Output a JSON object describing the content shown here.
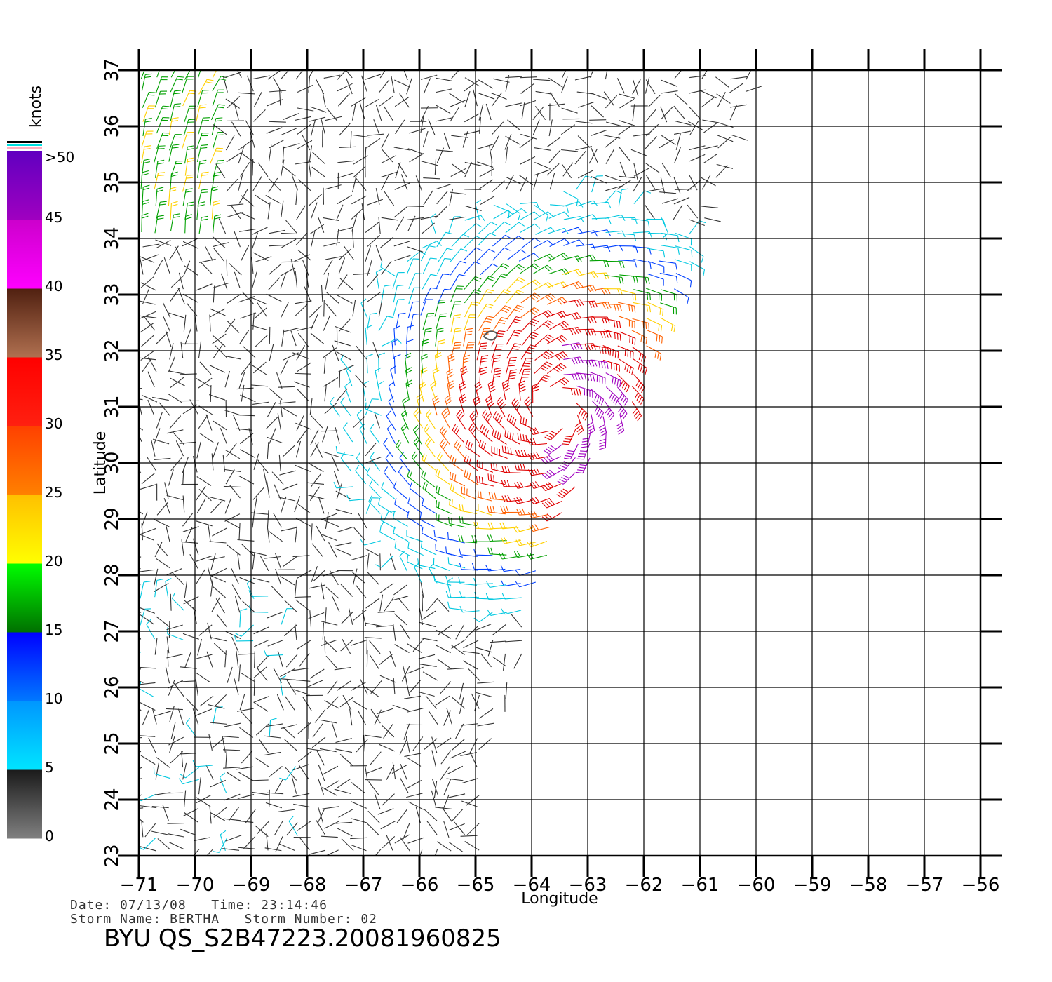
{
  "footer": {
    "date_label": "Date:",
    "date_value": "07/13/08",
    "time_label": "Time:",
    "time_value": "23:14:46",
    "storm_name_label": "Storm Name:",
    "storm_name_value": "BERTHA",
    "storm_number_label": "Storm Number:",
    "storm_number_value": "02",
    "product_id": "BYU QS_S2B47223.20081960825"
  },
  "chart_data": {
    "type": "wind-barbs",
    "xlabel": "Longitude",
    "ylabel": "Latitude",
    "xlim": [
      -71,
      -56
    ],
    "ylim": [
      23,
      37
    ],
    "x_ticks": [
      -71,
      -70,
      -69,
      -68,
      -67,
      -66,
      -65,
      -64,
      -63,
      -62,
      -61,
      -60,
      -59,
      -58,
      -57,
      -56
    ],
    "y_ticks": [
      23,
      24,
      25,
      26,
      27,
      28,
      29,
      30,
      31,
      32,
      33,
      34,
      35,
      36,
      37
    ],
    "grid": true,
    "storm_center": {
      "lon": -63.6,
      "lat": 30.9
    },
    "swath_east_edge": [
      [
        -60.0,
        37
      ],
      [
        -61.0,
        34
      ],
      [
        -61.5,
        33
      ],
      [
        -62.0,
        32
      ],
      [
        -62.2,
        31
      ],
      [
        -63.0,
        30
      ],
      [
        -63.6,
        28.5
      ],
      [
        -64.0,
        27.5
      ],
      [
        -64.3,
        26
      ],
      [
        -64.7,
        25
      ],
      [
        -64.9,
        24.0
      ]
    ],
    "colorbar": {
      "units": "knots",
      "tick_labels": [
        "0",
        "5",
        "10",
        "15",
        "20",
        "25",
        "30",
        "35",
        "40",
        "45",
        ">50"
      ],
      "bins": [
        {
          "min": 0,
          "max": 5,
          "color_low": "#808080",
          "color_high": "#1a1a1a"
        },
        {
          "min": 5,
          "max": 10,
          "color_low": "#00e5ff",
          "color_high": "#0096ff"
        },
        {
          "min": 10,
          "max": 15,
          "color_low": "#0078ff",
          "color_high": "#0000ff"
        },
        {
          "min": 15,
          "max": 20,
          "color_low": "#007000",
          "color_high": "#00ff00"
        },
        {
          "min": 20,
          "max": 25,
          "color_low": "#ffff00",
          "color_high": "#ffc000"
        },
        {
          "min": 25,
          "max": 30,
          "color_low": "#ff8000",
          "color_high": "#ff4000"
        },
        {
          "min": 30,
          "max": 35,
          "color_low": "#ff2010",
          "color_high": "#ff0000"
        },
        {
          "min": 35,
          "max": 40,
          "color_low": "#b07050",
          "color_high": "#502010"
        },
        {
          "min": 40,
          "max": 45,
          "color_low": "#ff00ff",
          "color_high": "#cc00cc"
        },
        {
          "min": 45,
          "max": 50,
          "color_low": "#a000c0",
          "color_high": "#6000c0"
        }
      ]
    },
    "wind_speed_bands_knots": [
      {
        "label": "0-5",
        "color": "#333333"
      },
      {
        "label": "5-10",
        "color": "#00c8e0"
      },
      {
        "label": "10-15",
        "color": "#0040ff"
      },
      {
        "label": "15-20",
        "color": "#00a000"
      },
      {
        "label": "20-25",
        "color": "#ffd000"
      },
      {
        "label": "25-30",
        "color": "#ff6000"
      },
      {
        "label": "30-35",
        "color": "#e00000"
      },
      {
        "label": "45-50",
        "color": "#a000c0"
      }
    ]
  }
}
